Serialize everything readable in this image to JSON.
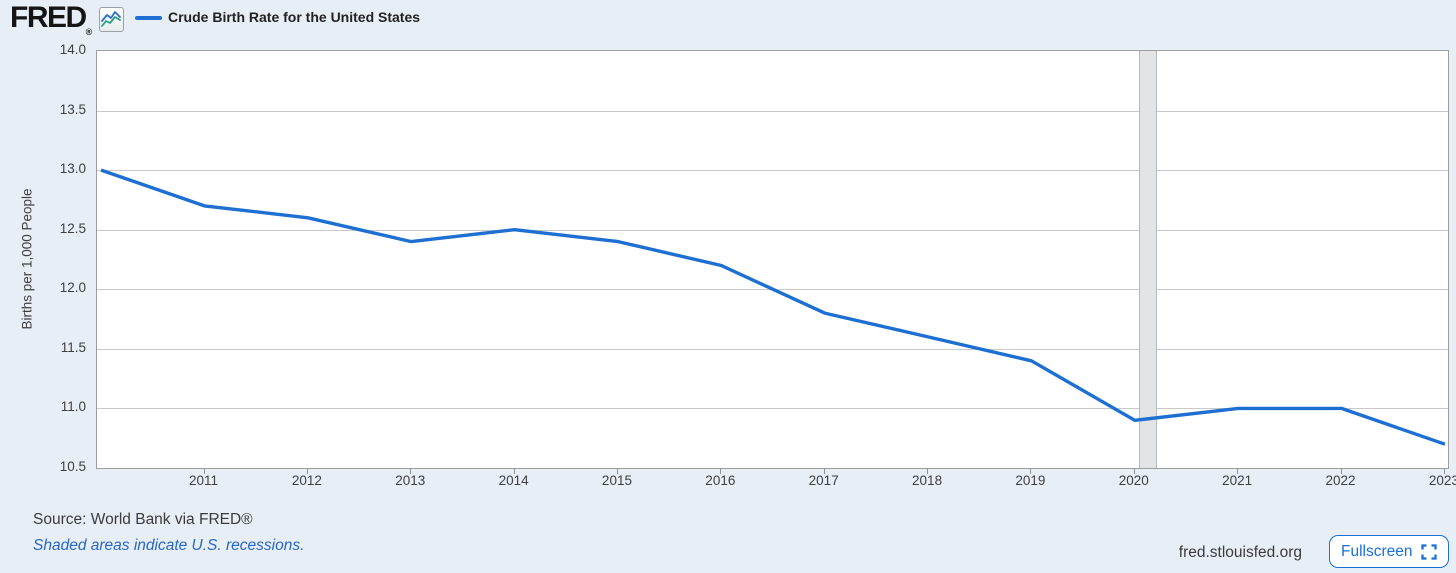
{
  "header": {
    "logo": "FRED",
    "logo_registered": "®",
    "legend": {
      "series_label": "Crude Birth Rate for the United States"
    }
  },
  "chart_data": {
    "type": "line",
    "title": "Crude Birth Rate for the United States",
    "ylabel": "Births per 1,000 People",
    "x": [
      2010,
      2011,
      2012,
      2013,
      2014,
      2015,
      2016,
      2017,
      2018,
      2019,
      2020,
      2021,
      2022,
      2023
    ],
    "values": [
      13.0,
      12.7,
      12.6,
      12.4,
      12.5,
      12.4,
      12.2,
      11.8,
      11.6,
      11.4,
      10.9,
      11.0,
      11.0,
      10.7
    ],
    "ylim": [
      10.5,
      14.0
    ],
    "ytick_step": 0.5,
    "xticks": [
      2011,
      2012,
      2013,
      2014,
      2015,
      2016,
      2017,
      2018,
      2019,
      2020,
      2021,
      2022,
      2023
    ],
    "xlim": [
      2009.96,
      2023.03
    ],
    "recession_bands": [
      {
        "start": 2020.04,
        "end": 2020.21
      }
    ],
    "grid": "horizontal",
    "legend_position": "top-left",
    "line_color": "#1d6fd2",
    "recession_fill": "#e2e4e6"
  },
  "footer": {
    "source": "Source: World Bank via FRED®",
    "recessions_note": "Shaded areas indicate U.S. recessions.",
    "site": "fred.stlouisfed.org",
    "fullscreen_label": "Fullscreen"
  }
}
